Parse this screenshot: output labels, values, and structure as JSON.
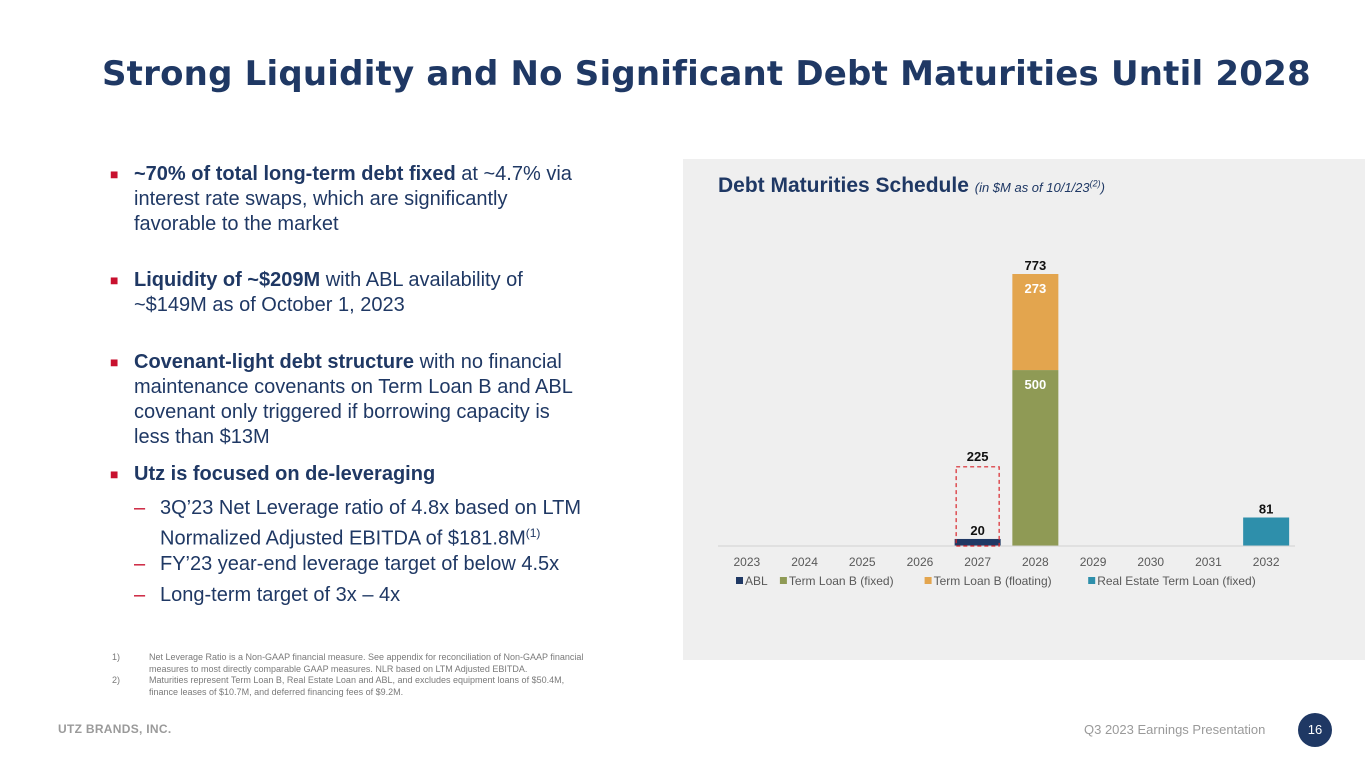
{
  "slide": {
    "title": "Strong Liquidity and No Significant Debt Maturities Until 2028",
    "footer_company": "UTZ BRANDS, INC.",
    "footer_presentation": "Q3 2023 Earnings Presentation",
    "page_number": "16"
  },
  "bullets": [
    {
      "bold": "~70% of total long-term debt fixed",
      "text_lines": [
        " at ~4.7% via",
        "interest rate swaps, which are significantly",
        "favorable to the market"
      ]
    },
    {
      "bold": "Liquidity of ~$209M",
      "text_lines": [
        " with ABL availability of",
        "~$149M as of October 1, 2023"
      ]
    },
    {
      "bold": "Covenant-light debt structure",
      "text_lines": [
        " with no financial",
        "maintenance covenants on Term Loan B and ABL",
        "covenant only triggered if borrowing capacity is",
        "less than $13M"
      ]
    },
    {
      "bold": "Utz is focused on de-leveraging",
      "text_lines": []
    }
  ],
  "sub_bullets": [
    {
      "lines": [
        "3Q’23 Net Leverage ratio of 4.8x based on LTM",
        "Normalized Adjusted EBITDA of $181.8M"
      ],
      "sup": "(1)"
    },
    {
      "lines": [
        "FY’23 year-end leverage target of below 4.5x"
      ],
      "sup": ""
    },
    {
      "lines": [
        "Long-term target of 3x – 4x"
      ],
      "sup": ""
    }
  ],
  "footnotes": [
    {
      "num": "1)",
      "lines": [
        "Net Leverage Ratio is a Non-GAAP financial measure. See appendix for reconciliation of Non-GAAP financial",
        "measures to most directly comparable GAAP measures.  NLR based on LTM Adjusted EBITDA."
      ]
    },
    {
      "num": "2)",
      "lines": [
        "Maturities represent Term Loan B, Real Estate Loan and ABL, and excludes equipment loans of $50.4M,",
        "finance leases of $10.7M, and deferred financing fees of $9.2M."
      ]
    }
  ],
  "chart_data": {
    "type": "bar",
    "title": "Debt Maturities Schedule",
    "subtitle": "(in $M as of 10/1/23",
    "subtitle_sup": "(2)",
    "subtitle_end": ")",
    "stacked": true,
    "categories": [
      "2023",
      "2024",
      "2025",
      "2026",
      "2027",
      "2028",
      "2029",
      "2030",
      "2031",
      "2032"
    ],
    "series": [
      {
        "name": "ABL",
        "color": "#1f3864",
        "values": [
          0,
          0,
          0,
          0,
          20,
          0,
          0,
          0,
          0,
          0
        ]
      },
      {
        "name": "Term Loan B (fixed)",
        "color": "#8f9a55",
        "values": [
          0,
          0,
          0,
          0,
          0,
          500,
          0,
          0,
          0,
          0
        ]
      },
      {
        "name": "Term Loan B (floating)",
        "color": "#e3a54e",
        "values": [
          0,
          0,
          0,
          0,
          0,
          273,
          0,
          0,
          0,
          0
        ]
      },
      {
        "name": "Real Estate Term Loan (fixed)",
        "color": "#2e8fab",
        "values": [
          0,
          0,
          0,
          0,
          0,
          0,
          0,
          0,
          0,
          81
        ]
      }
    ],
    "segment_labels": [
      {
        "category": "2028",
        "series": "Term Loan B (fixed)",
        "text": "500"
      },
      {
        "category": "2028",
        "series": "Term Loan B (floating)",
        "text": "273"
      }
    ],
    "total_labels": [
      {
        "category": "2027",
        "text": "20"
      },
      {
        "category": "2028",
        "text": "773"
      },
      {
        "category": "2032",
        "text": "81"
      }
    ],
    "annotation": {
      "category": "2027",
      "value": 225,
      "text": "225",
      "style": "dashed red box"
    },
    "ylim": [
      0,
      850
    ],
    "grid": false,
    "legend_position": "bottom"
  }
}
